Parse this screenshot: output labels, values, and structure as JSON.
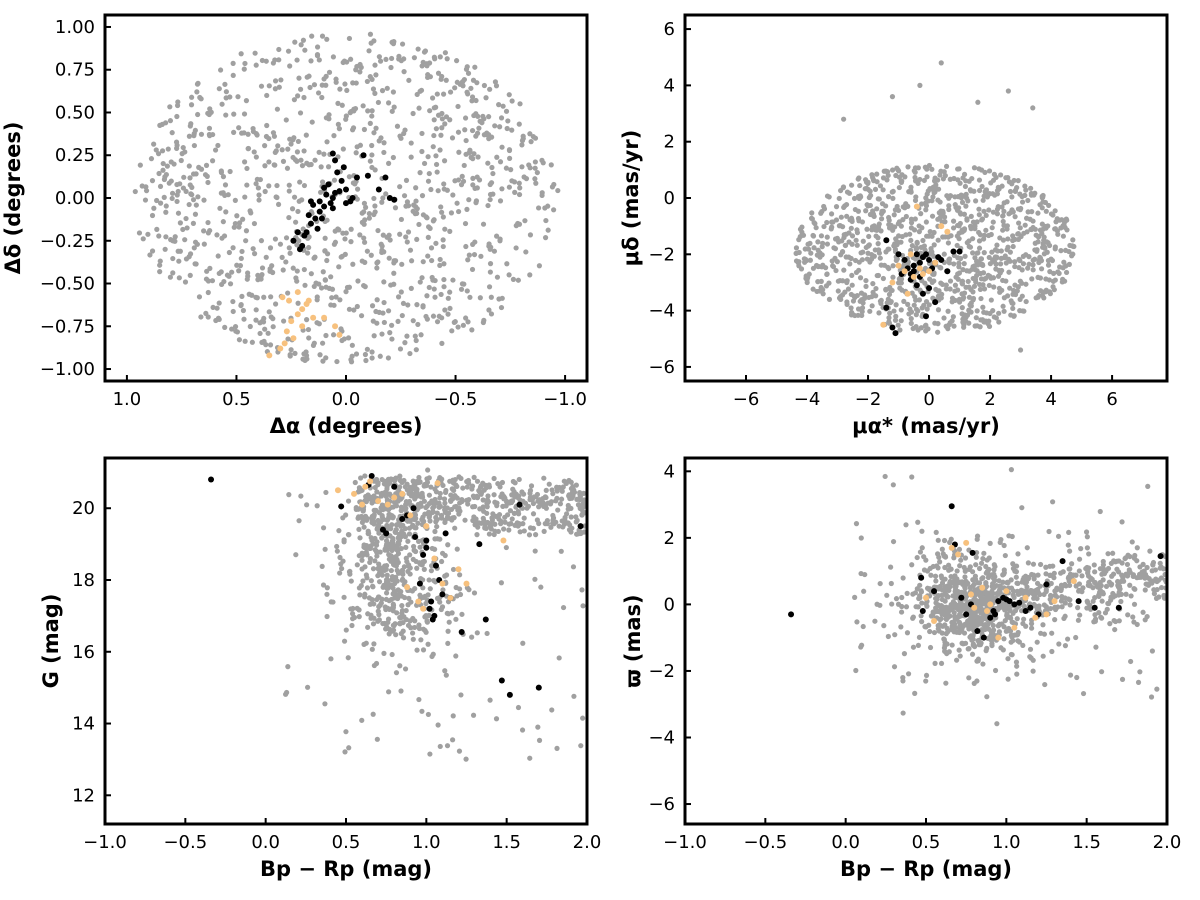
{
  "colors": {
    "field": "#a0a0a0",
    "members_black": "#000000",
    "members_orange": "#f7c17e"
  },
  "chart_data": [
    {
      "type": "scatter",
      "title": "",
      "xlabel": "Δα (degrees)",
      "ylabel": "Δδ (degrees)",
      "xlim": [
        1.1,
        -1.1
      ],
      "ylim": [
        -1.07,
        1.07
      ],
      "xticks": [
        1.0,
        0.5,
        0.0,
        -0.5,
        -1.0
      ],
      "xtick_labels": [
        "1.0",
        "0.5",
        "0.0",
        "−0.5",
        "−1.0"
      ],
      "yticks": [
        1.0,
        0.75,
        0.5,
        0.25,
        0.0,
        -0.25,
        -0.5,
        -0.75,
        -1.0
      ],
      "ytick_labels": [
        "1.00",
        "0.75",
        "0.50",
        "0.25",
        "0.00",
        "−0.25",
        "−0.50",
        "−0.75",
        "−1.00"
      ],
      "series": [
        {
          "color": "#a0a0a0",
          "background_cloud": {
            "shape": "ellipse",
            "cx": 0.0,
            "cy": 0.0,
            "rx": 0.97,
            "ry": 0.97,
            "count": 1100
          }
        },
        {
          "color": "#000000",
          "x": [
            0.01,
            0.05,
            0.06,
            0.04,
            0.02,
            0.0,
            -0.02,
            -0.05,
            -0.08,
            -0.1,
            -0.15,
            -0.2,
            -0.22,
            -0.18,
            0.06,
            0.1,
            0.12,
            0.14,
            0.16,
            0.18,
            0.2,
            0.22,
            0.07,
            0.08,
            0.06,
            0.15,
            0.17,
            0.19,
            0.13,
            0.11,
            0.12,
            0.09,
            0.1,
            0.16,
            0.21,
            0.24,
            0.05,
            0.03,
            0.0,
            -0.03
          ],
          "y": [
            0.18,
            0.22,
            0.26,
            0.15,
            0.1,
            0.05,
            -0.02,
            0.12,
            0.25,
            0.13,
            0.05,
            0.0,
            -0.01,
            0.12,
            0.0,
            -0.05,
            -0.08,
            -0.12,
            -0.15,
            -0.2,
            -0.28,
            -0.2,
            -0.03,
            0.08,
            -0.06,
            -0.04,
            -0.1,
            -0.22,
            -0.18,
            -0.12,
            -0.02,
            0.02,
            0.06,
            -0.02,
            -0.3,
            -0.25,
            0.03,
            0.04,
            -0.03,
            0.0
          ]
        },
        {
          "color": "#f7c17e",
          "x": [
            0.35,
            0.3,
            0.28,
            0.27,
            0.25,
            0.22,
            0.2,
            0.18,
            0.17,
            0.15,
            0.1,
            0.05,
            0.03,
            0.22,
            0.26,
            0.24,
            0.2,
            0.29
          ],
          "y": [
            -0.92,
            -0.88,
            -0.85,
            -0.78,
            -0.72,
            -0.68,
            -0.65,
            -0.62,
            -0.6,
            -0.7,
            -0.7,
            -0.75,
            -0.8,
            -0.55,
            -0.6,
            -0.82,
            -0.75,
            -0.58
          ]
        }
      ]
    },
    {
      "type": "scatter",
      "title": "",
      "xlabel": "μα* (mas/yr)",
      "ylabel": "μδ (mas/yr)",
      "xlim": [
        -8.0,
        7.8
      ],
      "ylim": [
        -6.5,
        6.5
      ],
      "xticks": [
        -6,
        -4,
        -2,
        0,
        2,
        4,
        6
      ],
      "xtick_labels": [
        "−6",
        "−4",
        "−2",
        "0",
        "2",
        "4",
        "6"
      ],
      "yticks": [
        6,
        4,
        2,
        0,
        -2,
        -4,
        -6
      ],
      "ytick_labels": [
        "6",
        "4",
        "2",
        "0",
        "−2",
        "−4",
        "−6"
      ],
      "series": [
        {
          "color": "#a0a0a0",
          "background_cloud": {
            "shape": "ellipse",
            "cx": 0.2,
            "cy": -1.8,
            "rx": 4.6,
            "ry": 3.0,
            "count": 1100,
            "outliers": [
              [
                -0.3,
                4.0
              ],
              [
                0.4,
                4.8
              ],
              [
                -1.2,
                3.6
              ],
              [
                1.6,
                3.4
              ],
              [
                2.6,
                3.8
              ],
              [
                3.4,
                3.2
              ],
              [
                -2.8,
                2.8
              ],
              [
                3.0,
                -5.4
              ]
            ]
          }
        },
        {
          "color": "#000000",
          "x": [
            -1.4,
            -1.0,
            -0.8,
            -0.7,
            -0.6,
            -0.5,
            -0.4,
            -0.3,
            -0.2,
            -0.1,
            0.0,
            0.1,
            0.2,
            0.3,
            0.4,
            -0.5,
            -0.3,
            0.0,
            0.2,
            -0.1,
            -0.6,
            -0.9,
            0.8,
            1.0,
            0.6,
            -1.4,
            -1.2,
            -1.1,
            -0.4,
            -0.2
          ],
          "y": [
            -1.5,
            -2.0,
            -2.2,
            -2.5,
            -2.7,
            -2.4,
            -2.0,
            -2.3,
            -2.1,
            -2.0,
            -2.2,
            -2.5,
            -2.3,
            -2.1,
            -2.2,
            -2.6,
            -2.8,
            -3.2,
            -3.7,
            -4.2,
            -2.9,
            -2.7,
            -1.9,
            -1.9,
            -2.6,
            -3.9,
            -4.6,
            -4.8,
            -3.1,
            -3.4
          ]
        },
        {
          "color": "#f7c17e",
          "x": [
            -1.0,
            -0.8,
            -0.5,
            -0.3,
            -0.2,
            0.0,
            0.2,
            -1.5,
            -1.2,
            -0.6,
            0.4,
            0.6,
            -0.4,
            -0.7
          ],
          "y": [
            -2.4,
            -2.6,
            -2.8,
            -2.5,
            -2.7,
            -2.6,
            -2.3,
            -4.5,
            -3.0,
            -2.0,
            -1.0,
            -1.2,
            -0.3,
            -3.4
          ]
        }
      ]
    },
    {
      "type": "scatter",
      "title": "",
      "xlabel": "Bp − Rp (mag)",
      "ylabel": "G (mag)",
      "xlim": [
        -1.0,
        2.0
      ],
      "ylim": [
        11.2,
        21.4
      ],
      "xticks": [
        -1.0,
        -0.5,
        0.0,
        0.5,
        1.0,
        1.5,
        2.0
      ],
      "xtick_labels": [
        "−1.0",
        "−0.5",
        "0.0",
        "0.5",
        "1.0",
        "1.5",
        "2.0"
      ],
      "yticks": [
        20,
        18,
        16,
        14,
        12
      ],
      "ytick_labels": [
        "20",
        "18",
        "16",
        "14",
        "12"
      ],
      "series": [
        {
          "color": "#a0a0a0",
          "background_cloud": {
            "shape": "cmd",
            "count": 1100
          }
        },
        {
          "color": "#000000",
          "x": [
            -0.34,
            0.47,
            0.66,
            0.73,
            0.8,
            0.88,
            0.92,
            0.93,
            0.96,
            0.98,
            1.0,
            1.02,
            1.04,
            1.06,
            1.1,
            1.12,
            1.22,
            1.33,
            1.37,
            1.47,
            1.52,
            1.58,
            1.7,
            1.96,
            0.64,
            0.75,
            0.85,
            1.0,
            1.03,
            1.05,
            1.08,
            1.15
          ],
          "y": [
            20.8,
            20.05,
            20.9,
            19.4,
            20.6,
            19.8,
            20.0,
            19.2,
            17.9,
            18.7,
            19.1,
            17.2,
            16.9,
            18.4,
            17.6,
            19.3,
            16.55,
            19.0,
            16.9,
            15.2,
            14.8,
            20.1,
            15.0,
            19.5,
            20.65,
            19.3,
            19.7,
            18.9,
            17.4,
            17.0,
            18.0,
            17.5
          ]
        },
        {
          "color": "#f7c17e",
          "x": [
            0.45,
            0.55,
            0.6,
            0.62,
            0.65,
            0.7,
            0.76,
            0.8,
            0.85,
            0.9,
            0.95,
            1.0,
            1.05,
            1.1,
            1.15,
            1.2,
            1.25,
            1.48,
            0.98,
            0.88,
            1.07
          ],
          "y": [
            20.5,
            20.4,
            20.1,
            20.6,
            20.75,
            20.2,
            20.1,
            20.3,
            20.4,
            19.8,
            17.4,
            19.5,
            18.6,
            17.9,
            17.5,
            18.3,
            17.9,
            19.1,
            17.2,
            17.8,
            20.7
          ]
        }
      ]
    },
    {
      "type": "scatter",
      "title": "",
      "xlabel": "Bp − Rp (mag)",
      "ylabel": "ϖ (mas)",
      "xlim": [
        -1.0,
        2.0
      ],
      "ylim": [
        -6.6,
        4.4
      ],
      "xticks": [
        -1.0,
        -0.5,
        0.0,
        0.5,
        1.0,
        1.5,
        2.0
      ],
      "xtick_labels": [
        "−1.0",
        "−0.5",
        "0.0",
        "0.5",
        "1.0",
        "1.5",
        "2.0"
      ],
      "yticks": [
        4,
        2,
        0,
        -2,
        -4,
        -6
      ],
      "ytick_labels": [
        "4",
        "2",
        "0",
        "−2",
        "−4",
        "−6"
      ],
      "series": [
        {
          "color": "#a0a0a0",
          "background_cloud": {
            "shape": "parallax",
            "count": 1100
          }
        },
        {
          "color": "#000000",
          "x": [
            -0.34,
            0.47,
            0.48,
            0.55,
            0.66,
            0.68,
            0.72,
            0.75,
            0.79,
            0.82,
            0.86,
            0.9,
            0.93,
            0.95,
            0.98,
            1.02,
            1.05,
            1.08,
            1.12,
            1.15,
            1.2,
            1.25,
            1.35,
            1.45,
            1.55,
            1.7,
            1.96,
            0.78,
            0.92,
            1.0
          ],
          "y": [
            -0.3,
            0.8,
            -0.2,
            0.4,
            2.95,
            1.8,
            0.2,
            -0.3,
            1.55,
            -0.8,
            -1.0,
            -0.4,
            -0.3,
            0.1,
            0.2,
            0.1,
            0.0,
            0.05,
            -0.2,
            -0.1,
            -0.3,
            0.6,
            1.3,
            0.1,
            -0.1,
            -0.1,
            1.45,
            0.0,
            -0.2,
            0.15
          ]
        },
        {
          "color": "#f7c17e",
          "x": [
            0.5,
            0.55,
            0.66,
            0.7,
            0.75,
            0.78,
            0.8,
            0.85,
            0.88,
            0.9,
            1.0,
            1.05,
            1.12,
            1.18,
            1.25,
            1.3,
            1.42,
            0.95
          ],
          "y": [
            0.2,
            -0.5,
            1.7,
            1.5,
            1.85,
            0.3,
            -0.1,
            0.5,
            -0.2,
            0.0,
            0.4,
            -0.7,
            0.2,
            -0.4,
            -0.3,
            0.1,
            0.7,
            -1.0
          ]
        }
      ]
    }
  ]
}
